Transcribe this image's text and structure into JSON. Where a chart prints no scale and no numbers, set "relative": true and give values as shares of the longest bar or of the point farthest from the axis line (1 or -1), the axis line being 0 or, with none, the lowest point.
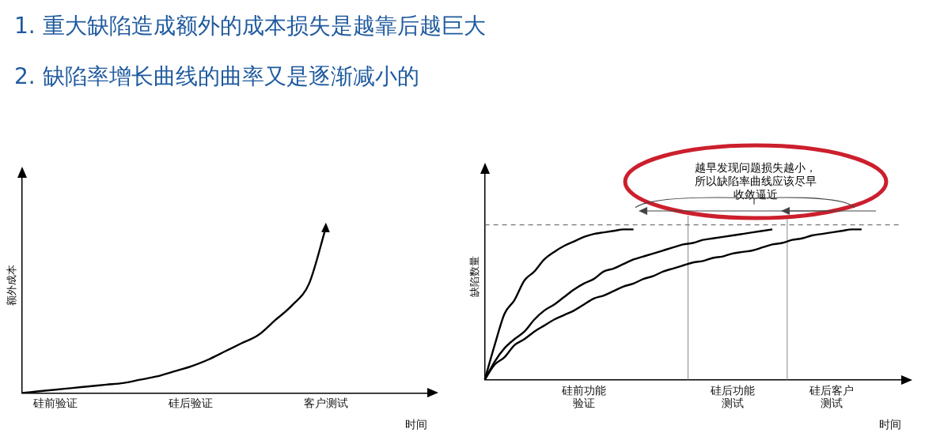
{
  "chart_data": [
    {
      "type": "line",
      "title": "1. 重大缺陷造成额外的成本损失是越靠后越巨大",
      "subtitle": "2. 缺陷率增长曲线的曲率又是逐渐减小的",
      "xlabel": "时间",
      "ylabel": "额外成本",
      "relative": true,
      "grid": false,
      "legend": false,
      "marker": "none",
      "line_style": "solid",
      "categories": [
        null,
        null,
        "硅前验证",
        null,
        null,
        null,
        null,
        null,
        null,
        null,
        "硅后验证",
        null,
        null,
        null,
        null,
        null,
        null,
        null,
        "客户测试",
        null,
        null,
        null,
        null,
        null,
        null
      ],
      "series": [
        {
          "color": "#000000",
          "values": [
            0,
            0.01,
            0.02,
            0.03,
            0.04,
            0.05,
            0.06,
            0.08,
            0.1,
            0.13,
            0.16,
            0.2,
            0.25,
            0.3,
            0.35,
            0.44,
            0.53,
            0.66,
            1.0,
            null,
            null,
            null,
            null,
            null,
            null
          ]
        }
      ]
    },
    {
      "type": "line",
      "xlabel": "时间",
      "ylabel": "缺陷数量",
      "relative": true,
      "grid": false,
      "legend": false,
      "marker": "none",
      "line_style": "solid",
      "annotations": [
        "越早发现问题损失越小，所以缺陷率曲线应该尽早收敛逼近"
      ],
      "categories": [
        null,
        null,
        null,
        null,
        null,
        null,
        null,
        null,
        null,
        null,
        "硅前功能验证",
        null,
        null,
        null,
        null,
        null,
        null,
        null,
        null,
        null,
        null,
        null,
        null,
        null,
        null,
        "硅后功能测试",
        null,
        null,
        null,
        null,
        null,
        null,
        null,
        null,
        null,
        "硅后客户测试",
        null,
        null,
        null,
        null,
        null,
        null,
        null
      ],
      "ref_lines": [
        {
          "axis": "y",
          "value": 1.03,
          "color": "#555555",
          "line_style": "dashed"
        }
      ],
      "series": [
        {
          "color": "#000000",
          "values": [
            0,
            0.23,
            0.44,
            0.53,
            0.66,
            0.72,
            0.8,
            0.85,
            0.89,
            0.92,
            0.95,
            0.97,
            0.98,
            0.99,
            1.0,
            1.0,
            null,
            null,
            null,
            null,
            null,
            null,
            null,
            null,
            null,
            null,
            null,
            null,
            null,
            null,
            null,
            null,
            null,
            null,
            null,
            null,
            null,
            null,
            null,
            null,
            null,
            null,
            null
          ]
        },
        {
          "color": "#000000",
          "values": [
            0,
            0.12,
            0.21,
            0.27,
            0.32,
            0.4,
            0.46,
            0.5,
            0.55,
            0.6,
            0.64,
            0.67,
            0.72,
            0.74,
            0.77,
            0.8,
            0.82,
            0.84,
            0.86,
            0.88,
            0.9,
            0.91,
            0.93,
            0.94,
            0.95,
            0.96,
            0.97,
            0.98,
            0.99,
            1.0,
            null,
            null,
            null,
            null,
            null,
            null,
            null,
            null,
            null,
            null,
            null,
            null,
            null
          ]
        },
        {
          "color": "#000000",
          "values": [
            0,
            0.1,
            0.15,
            0.23,
            0.27,
            0.32,
            0.36,
            0.4,
            0.43,
            0.46,
            0.5,
            0.54,
            0.56,
            0.59,
            0.62,
            0.64,
            0.67,
            0.69,
            0.72,
            0.74,
            0.76,
            0.78,
            0.79,
            0.81,
            0.82,
            0.84,
            0.85,
            0.86,
            0.88,
            0.9,
            0.91,
            0.93,
            0.94,
            0.96,
            0.97,
            0.98,
            0.99,
            1.0,
            1.0,
            null,
            null,
            null,
            null
          ]
        }
      ]
    }
  ]
}
